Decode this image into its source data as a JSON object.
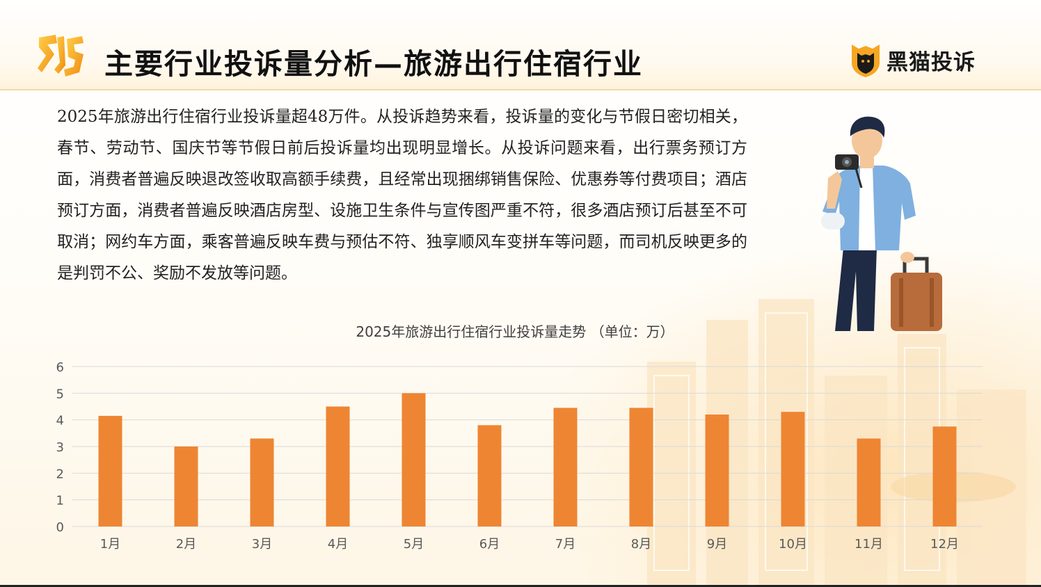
{
  "header": {
    "title": "主要行业投诉量分析—旅游出行住宿行业",
    "brand": "黑猫投诉"
  },
  "body": {
    "paragraph": "2025年旅游出行住宿行业投诉量超48万件。从投诉趋势来看，投诉量的变化与节假日密切相关，春节、劳动节、国庆节等节假日前后投诉量均出现明显增长。从投诉问题来看，出行票务预订方面，消费者普遍反映退改签收取高额手续费，且经常出现捆绑销售保险、优惠券等付费项目；酒店预订方面，消费者普遍反映酒店房型、设施卫生条件与宣传图严重不符，很多酒店预订后甚至不可取消；网约车方面，乘客普遍反映车费与预估不符、独享顺风车变拼车等问题，而司机反映更多的是判罚不公、奖励不发放等问题。"
  },
  "colors": {
    "bar": "#EE8533",
    "grid": "#d9d9d9",
    "accent": "#F2B21F",
    "axis_text": "#595959"
  },
  "icons": [
    "logo-mark-icon",
    "black-cat-logo-icon",
    "traveler-illustration"
  ],
  "chart_data": {
    "type": "bar",
    "title": "2025年旅游出行住宿行业投诉量走势 （单位：万）",
    "categories": [
      "1月",
      "2月",
      "3月",
      "4月",
      "5月",
      "6月",
      "7月",
      "8月",
      "9月",
      "10月",
      "11月",
      "12月"
    ],
    "values": [
      4.15,
      3.0,
      3.3,
      4.5,
      5.0,
      3.8,
      4.45,
      4.45,
      4.2,
      4.3,
      3.3,
      3.75
    ],
    "yticks": [
      "0",
      "1",
      "2",
      "3",
      "4",
      "5",
      "6"
    ],
    "ylim": [
      0,
      6
    ],
    "grid": true,
    "legend": "none"
  }
}
